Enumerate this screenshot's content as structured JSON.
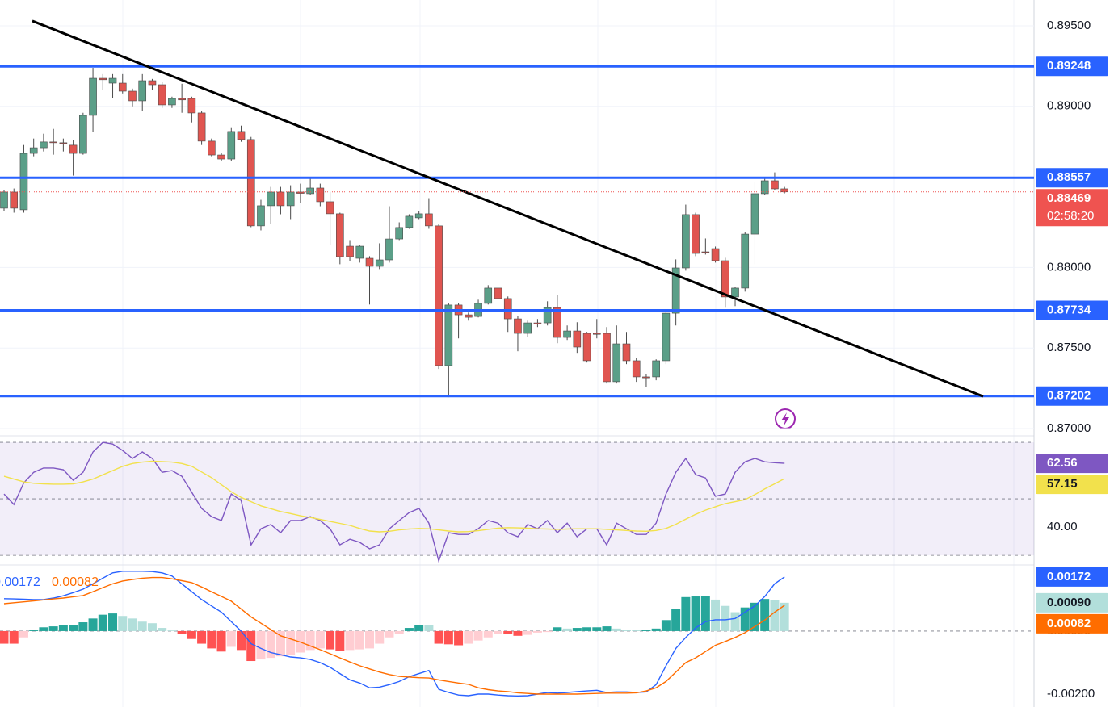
{
  "chart_data": [
    {
      "type": "candlestick",
      "open": [
        0.88368,
        0.88468,
        0.88358,
        0.88708,
        0.88743,
        0.88779,
        0.88774,
        0.88759,
        0.88708,
        0.88944,
        0.89174,
        0.89144,
        0.89144,
        0.89094,
        0.89034,
        0.89159,
        0.89134,
        0.89009,
        0.89049,
        0.89049,
        0.88959,
        0.88784,
        0.88698,
        0.88673,
        0.88844,
        0.88794,
        0.88258,
        0.88383,
        0.88468,
        0.88383,
        0.88468,
        0.88458,
        0.88493,
        0.88408,
        0.88333,
        0.88132,
        0.88057,
        0.88057,
        0.88007,
        0.88047,
        0.88177,
        0.88248,
        0.88308,
        0.88333,
        0.88258,
        0.87391,
        0.87767,
        0.87706,
        0.87696,
        0.87777,
        0.87872,
        0.87807,
        0.87681,
        0.87591,
        0.87656,
        0.87656,
        0.87751,
        0.87566,
        0.87606,
        0.87591,
        0.87591,
        0.87591,
        0.87291,
        0.87526,
        0.87421,
        0.87321,
        0.87321,
        0.87421,
        0.87716,
        0.87997,
        0.88328,
        0.88097,
        0.88117,
        0.88042,
        0.87817,
        0.87872,
        0.88207,
        0.88458,
        0.88538,
        0.88488
      ],
      "high": [
        0.8848,
        0.8849,
        0.8876,
        0.888,
        0.8883,
        0.8886,
        0.888,
        0.8879,
        0.8896,
        0.89239,
        0.892,
        0.892,
        0.892,
        0.8911,
        0.892,
        0.8917,
        0.8915,
        0.8906,
        0.8914,
        0.8906,
        0.8897,
        0.888,
        0.8871,
        0.8887,
        0.8888,
        0.8881,
        0.8842,
        0.885,
        0.885,
        0.8851,
        0.8852,
        0.8856,
        0.8852,
        0.8847,
        0.8834,
        0.8817,
        0.8814,
        0.8807,
        0.8815,
        0.8838,
        0.8828,
        0.8833,
        0.8835,
        0.8843,
        0.8827,
        0.8778,
        0.8778,
        0.8772,
        0.878,
        0.8789,
        0.882,
        0.8782,
        0.877,
        0.8767,
        0.8768,
        0.8779,
        0.8783,
        0.8764,
        0.8766,
        0.876,
        0.8768,
        0.8763,
        0.8764,
        0.876,
        0.8744,
        0.8734,
        0.8743,
        0.8773,
        0.8805,
        0.8839,
        0.8834,
        0.8818,
        0.8813,
        0.8806,
        0.8788,
        0.8822,
        0.8853,
        0.8856,
        0.8859,
        0.885
      ],
      "low": [
        0.8835,
        0.8834,
        0.8834,
        0.8869,
        0.8872,
        0.887,
        0.8872,
        0.8857,
        0.887,
        0.8884,
        0.891,
        0.8905,
        0.8908,
        0.89,
        0.8897,
        0.891,
        0.8899,
        0.8899,
        0.8896,
        0.889,
        0.8876,
        0.8869,
        0.8866,
        0.8866,
        0.8878,
        0.8825,
        0.8823,
        0.8827,
        0.8833,
        0.883,
        0.884,
        0.8845,
        0.8838,
        0.8814,
        0.8802,
        0.8804,
        0.8803,
        0.8777,
        0.8799,
        0.8803,
        0.8817,
        0.8824,
        0.883,
        0.8824,
        0.8737,
        0.87195,
        0.8756,
        0.8767,
        0.8769,
        0.8777,
        0.8779,
        0.876,
        0.8748,
        0.8757,
        0.8763,
        0.8764,
        0.8753,
        0.8755,
        0.8747,
        0.8741,
        0.8756,
        0.8728,
        0.8728,
        0.874,
        0.8729,
        0.8726,
        0.873,
        0.874,
        0.8764,
        0.8798,
        0.8807,
        0.8808,
        0.8803,
        0.8775,
        0.8776,
        0.8785,
        0.8802,
        0.8845,
        0.8848,
        0.8846
      ],
      "close": [
        0.88468,
        0.88368,
        0.88708,
        0.88743,
        0.88779,
        0.88774,
        0.8877,
        0.88708,
        0.88944,
        0.89174,
        0.89165,
        0.89174,
        0.89094,
        0.89034,
        0.89159,
        0.89134,
        0.89009,
        0.89049,
        0.8904,
        0.88959,
        0.88784,
        0.88698,
        0.88673,
        0.88844,
        0.88794,
        0.88258,
        0.88383,
        0.88468,
        0.88383,
        0.88468,
        0.8846,
        0.88493,
        0.88408,
        0.88333,
        0.88067,
        0.88067,
        0.88132,
        0.88007,
        0.88047,
        0.88177,
        0.88248,
        0.88318,
        0.88333,
        0.88258,
        0.87391,
        0.87767,
        0.87706,
        0.87691,
        0.87777,
        0.87872,
        0.87807,
        0.87681,
        0.87591,
        0.87656,
        0.8765,
        0.87751,
        0.87566,
        0.87606,
        0.87506,
        0.87421,
        0.87585,
        0.87291,
        0.87526,
        0.87421,
        0.87321,
        0.87315,
        0.87421,
        0.87716,
        0.87997,
        0.88328,
        0.88087,
        0.88092,
        0.88042,
        0.87817,
        0.87872,
        0.88207,
        0.88458,
        0.88538,
        0.88488,
        0.88469
      ],
      "up_color": "#5b9f88",
      "down_color": "#e05550",
      "ylim": [
        0.86955,
        0.8966
      ],
      "yticks": [
        {
          "value": 0.895,
          "label": "0.89500"
        },
        {
          "value": 0.89,
          "label": "0.89000"
        },
        {
          "value": 0.88,
          "label": "0.88000"
        },
        {
          "value": 0.875,
          "label": "0.87500"
        },
        {
          "value": 0.87,
          "label": "0.87000"
        }
      ],
      "grid": true,
      "levels": {
        "values": [
          0.89248,
          0.88557,
          0.87734,
          0.87202
        ],
        "color": "#2962ff"
      },
      "trendline": {
        "x": [
          2.86,
          99.1
        ],
        "values": [
          0.8953,
          0.872
        ],
        "color": "#000000"
      },
      "last_price": {
        "value": 0.88469,
        "countdown": "02:58:20",
        "color": "#ef5350"
      }
    },
    {
      "type": "line",
      "series": [
        {
          "color": "#7e57c2",
          "values": [
            51.7,
            48,
            55.7,
            59.4,
            60.9,
            60.9,
            60.3,
            56.6,
            59.4,
            66.6,
            70,
            69.4,
            67.1,
            64.3,
            66.6,
            64.3,
            59.4,
            60,
            58,
            52.3,
            46.6,
            43.7,
            42.3,
            51.7,
            49.4,
            33.7,
            39.4,
            40.9,
            38,
            42.3,
            42.3,
            43.7,
            42.3,
            39.4,
            33.7,
            35.7,
            34.6,
            32.3,
            33.7,
            39.4,
            42.3,
            45.1,
            46.6,
            41.4,
            28,
            38,
            37.4,
            37.4,
            39.4,
            42.3,
            41.4,
            38,
            36.6,
            40.9,
            39.4,
            42.3,
            38,
            41.4,
            36.6,
            39.4,
            39.4,
            33.7,
            41.4,
            39.4,
            37.4,
            37.4,
            41.4,
            51.7,
            59.4,
            64.3,
            58.6,
            57.4,
            50.9,
            51.7,
            59.4,
            63.1,
            64.3,
            63.1,
            62.8,
            62.56
          ]
        },
        {
          "color": "#f2e14c",
          "values": [
            58,
            57,
            56,
            55.5,
            55.3,
            55.2,
            55.2,
            55.3,
            56,
            57,
            58.5,
            60,
            61.5,
            62.5,
            63,
            63.3,
            63.2,
            63,
            62.5,
            61.5,
            59.5,
            57.5,
            55,
            52.5,
            50.5,
            49,
            47.5,
            46.5,
            45.5,
            44.8,
            44,
            43.4,
            42.7,
            42,
            41.3,
            40.6,
            39.5,
            38.6,
            38.3,
            38.5,
            39,
            39.3,
            39.5,
            39.4,
            39,
            38.6,
            38.3,
            38.4,
            38.7,
            39.2,
            39.6,
            39.8,
            39.7,
            39.6,
            39.4,
            39.3,
            39.2,
            39.3,
            39.4,
            39.4,
            39.4,
            39.2,
            39,
            38.8,
            38.6,
            38.5,
            38.8,
            39.5,
            41,
            42.8,
            44.5,
            46,
            47.2,
            48.3,
            49,
            49.7,
            51.5,
            53.5,
            55.3,
            57.15
          ]
        }
      ],
      "ylim": [
        26.6,
        72.3
      ],
      "yticks": [
        {
          "value": 40,
          "label": "40.00"
        }
      ],
      "hlines": [
        30,
        50,
        70
      ]
    },
    {
      "type": "macd",
      "series": [
        {
          "color": "#2962ff",
          "values": [
            0.00103,
            0.00102,
            0.00101,
            0.001,
            0.001,
            0.00105,
            0.00112,
            0.00122,
            0.00133,
            0.0015,
            0.00168,
            0.00185,
            0.0019,
            0.0019,
            0.0019,
            0.00189,
            0.00185,
            0.00175,
            0.0015,
            0.00125,
            0.001,
            0.0008,
            0.0006,
            0.0003,
            0,
            -0.0004,
            -0.00055,
            -0.00068,
            -0.00075,
            -0.00082,
            -0.00085,
            -0.0009,
            -0.001,
            -0.00115,
            -0.00135,
            -0.00155,
            -0.00165,
            -0.0018,
            -0.00178,
            -0.0017,
            -0.0016,
            -0.00145,
            -0.00135,
            -0.00125,
            -0.00185,
            -0.00195,
            -0.00203,
            -0.00205,
            -0.002,
            -0.002,
            -0.00203,
            -0.00205,
            -0.00206,
            -0.00205,
            -0.002,
            -0.00195,
            -0.00197,
            -0.00195,
            -0.00192,
            -0.0019,
            -0.00188,
            -0.00195,
            -0.00193,
            -0.00193,
            -0.00195,
            -0.00193,
            -0.0017,
            -0.0011,
            -0.00055,
            -0.0002,
            0.0001,
            0.0003,
            0.00036,
            0.00036,
            0.0004,
            0.0006,
            0.0008,
            0.0011,
            0.0015,
            0.00172
          ]
        },
        {
          "color": "#ff6d00",
          "values": [
            0.00087,
            0.0009,
            0.00093,
            0.00096,
            0.00099,
            0.00102,
            0.00105,
            0.00109,
            0.00113,
            0.00125,
            0.00138,
            0.0015,
            0.00159,
            0.00164,
            0.00168,
            0.0017,
            0.0017,
            0.00166,
            0.0016,
            0.00154,
            0.0014,
            0.00125,
            0.0011,
            0.00095,
            0.0007,
            0.00045,
            0.00025,
            5e-05,
            -0.00015,
            -0.00025,
            -0.00035,
            -0.00047,
            -0.00059,
            -0.00072,
            -0.00085,
            -0.00098,
            -0.0011,
            -0.0012,
            -0.0013,
            -0.00138,
            -0.00144,
            -0.00146,
            -0.00148,
            -0.00149,
            -0.00155,
            -0.0016,
            -0.00165,
            -0.00169,
            -0.0018,
            -0.00186,
            -0.0019,
            -0.00192,
            -0.00196,
            -0.00198,
            -0.002,
            -0.002,
            -0.002,
            -0.002,
            -0.002,
            -0.00199,
            -0.00198,
            -0.00197,
            -0.00197,
            -0.00197,
            -0.00196,
            -0.0019,
            -0.0018,
            -0.0016,
            -0.0013,
            -0.001,
            -0.00085,
            -0.00065,
            -0.00045,
            -0.00033,
            -0.0002,
            -5e-05,
            0.00015,
            0.00035,
            0.0006,
            0.00082
          ]
        }
      ],
      "histogram": {
        "values": [
          -0.0004,
          -0.0004,
          -0.0002,
          5e-05,
          0.00012,
          0.00015,
          0.00018,
          0.0002,
          0.00028,
          0.0004,
          0.00052,
          0.00056,
          0.00048,
          0.0004,
          0.0003,
          0.00025,
          0.0001,
          2e-05,
          -0.0001,
          -0.00025,
          -0.0004,
          -0.00055,
          -0.00065,
          -0.0005,
          -0.0006,
          -0.00095,
          -0.0009,
          -0.00085,
          -0.0008,
          -0.00075,
          -0.00068,
          -0.0006,
          -0.00055,
          -0.00058,
          -0.00062,
          -0.0006,
          -0.00058,
          -0.00055,
          -0.0004,
          -0.0002,
          -0.0001,
          0.0001,
          0.0002,
          0.00018,
          -0.0004,
          -0.00042,
          -0.00045,
          -0.0004,
          -0.0003,
          -0.0002,
          -0.0001,
          -0.0001,
          -0.00015,
          -0.00012,
          -5e-05,
          -3e-05,
          0.00012,
          8e-05,
          0.0001,
          0.00012,
          0.00012,
          0.00015,
          8e-05,
          5e-05,
          4e-05,
          4e-05,
          8e-05,
          0.00035,
          0.0007,
          0.00108,
          0.0011,
          0.00112,
          0.001,
          0.0008,
          0.0006,
          0.00075,
          0.0009,
          0.00102,
          0.00098,
          0.0009
        ],
        "value_labels": [
          null,
          null,
          null,
          null,
          null,
          null,
          null,
          null,
          null,
          null,
          null,
          null,
          null,
          null,
          null,
          null,
          null,
          null,
          null,
          null,
          null,
          null,
          null,
          null,
          null,
          null,
          null,
          null,
          null,
          null,
          null,
          null,
          null,
          null,
          null,
          null,
          null,
          null,
          null,
          null,
          null,
          null,
          null,
          null,
          null,
          null,
          null,
          null,
          null,
          null,
          null,
          null,
          null,
          null,
          null,
          null,
          null,
          null,
          null,
          null,
          null,
          null,
          null,
          null,
          null,
          null,
          null,
          null,
          null,
          null,
          null,
          null,
          null,
          null,
          null,
          null,
          null,
          null,
          null,
          "0.00090"
        ],
        "colors": {
          "up_strong": "#26a69a",
          "up_weak": "#b2dfdb",
          "down_strong": "#ff5252",
          "down_weak": "#ffcdd2"
        }
      },
      "ylim": [
        -0.00241,
        0.0021
      ],
      "yticks": [
        {
          "value": -0.002,
          "label": "-0.00200"
        },
        {
          "value": 0,
          "label": "0.00000"
        }
      ]
    }
  ]
}
